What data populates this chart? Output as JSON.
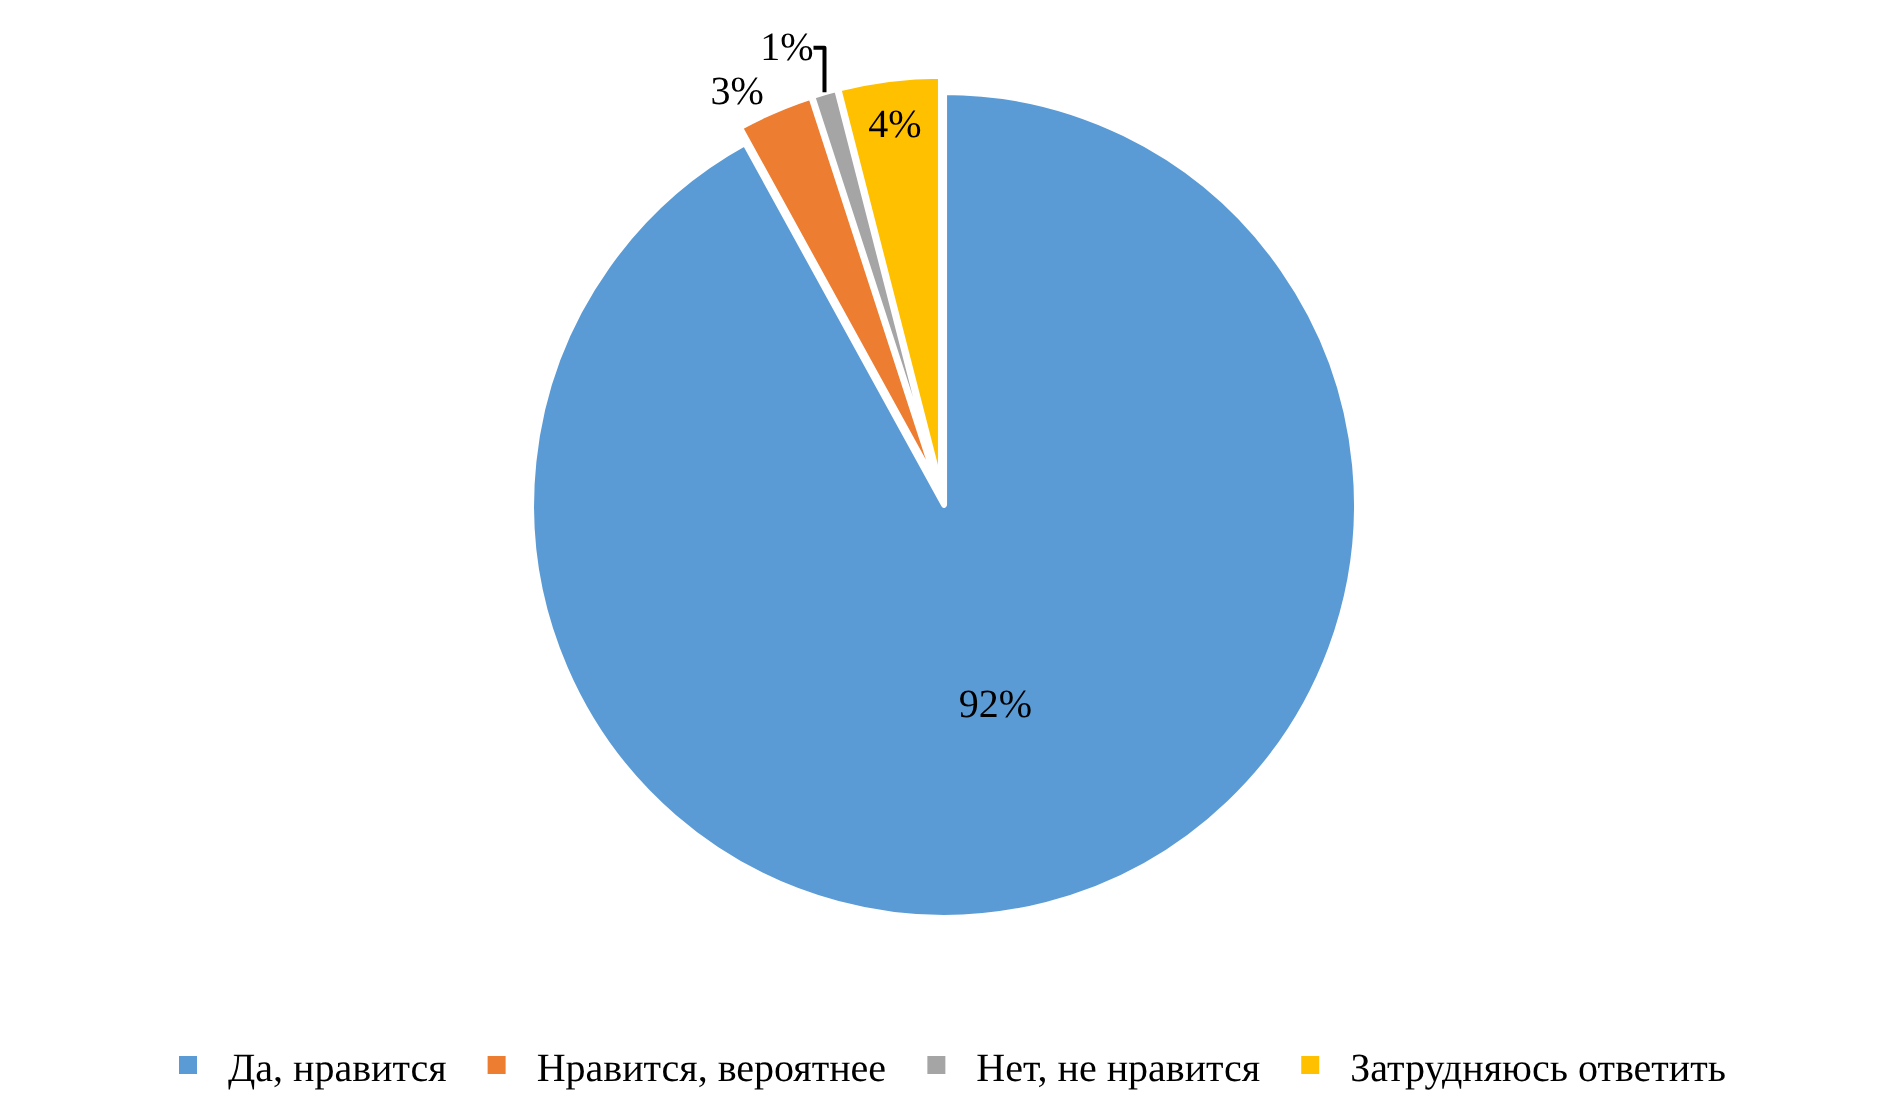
{
  "chart_data": {
    "type": "pie",
    "categories": [
      "Да, нравится",
      "Нравится, вероятнее",
      "Нет, не нравится",
      "Затрудняюсь ответить"
    ],
    "values": [
      92,
      3,
      1,
      4
    ],
    "colors": [
      "#5b9bd5",
      "#ed7d31",
      "#a5a5a5",
      "#ffc000"
    ],
    "value_labels": [
      "92%",
      "3%",
      "1%",
      "4%"
    ],
    "legend": "bottom"
  }
}
